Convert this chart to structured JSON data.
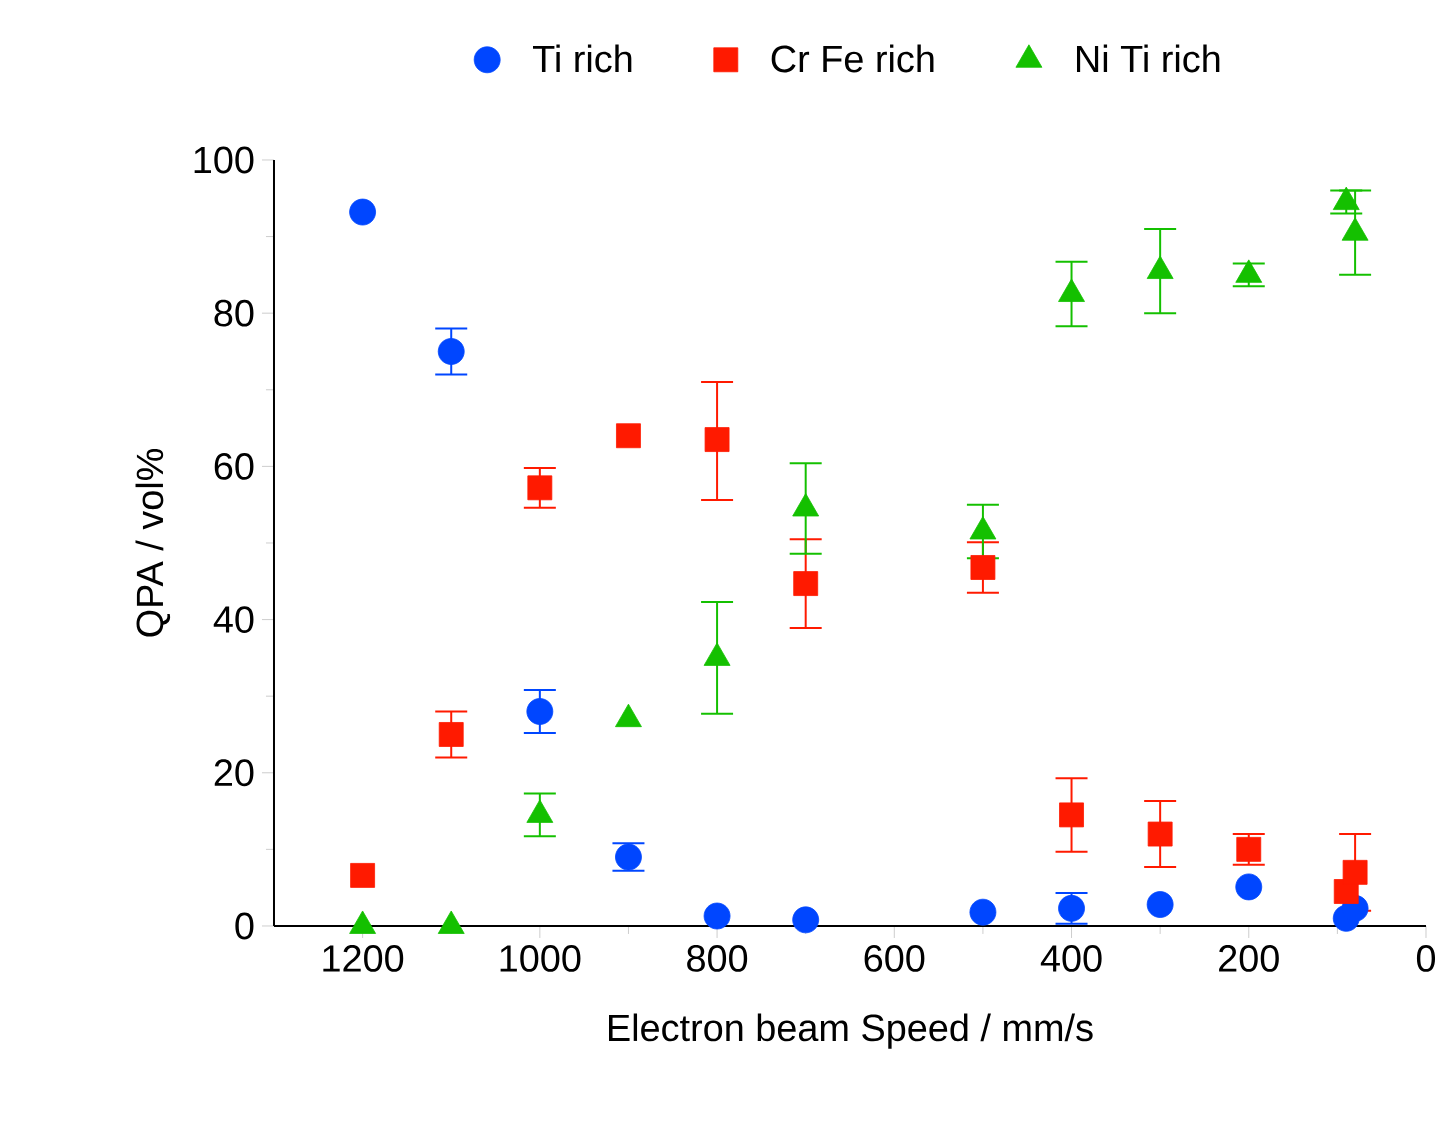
{
  "chart_data": {
    "type": "scatter",
    "xlabel": "Electron beam Speed  / mm/s",
    "ylabel": "QPA / vol%",
    "x": [
      1200,
      1100,
      1000,
      900,
      800,
      700,
      500,
      400,
      300,
      200,
      90,
      80
    ],
    "series": [
      {
        "name": "Ti rich",
        "color": "#0046ff",
        "marker": "circle",
        "values": [
          93.2,
          75,
          28,
          9,
          1.3,
          0.8,
          1.8,
          2.3,
          2.8,
          5.1,
          1,
          2.3
        ],
        "errors": [
          null,
          3,
          2.8,
          1.8,
          null,
          null,
          null,
          2,
          null,
          null,
          null,
          null
        ]
      },
      {
        "name": "Cr Fe rich",
        "color": "#ff1a00",
        "marker": "square",
        "values": [
          6.6,
          25,
          57.2,
          64,
          63.5,
          44.7,
          46.8,
          14.5,
          12,
          10,
          4.5,
          7
        ],
        "errors": [
          null,
          3,
          2.6,
          null,
          [
            55.6,
            71
          ],
          5.8,
          3.3,
          4.8,
          4.3,
          2,
          null,
          5
        ]
      },
      {
        "name": "Ni Ti rich",
        "color": "#14c000",
        "marker": "triangle",
        "values": [
          0,
          0,
          14.5,
          27,
          35,
          54.5,
          51.5,
          82.5,
          85.5,
          85,
          94.5,
          90.5
        ],
        "errors": [
          null,
          null,
          2.8,
          null,
          7.3,
          5.9,
          3.5,
          4.2,
          5.5,
          1.5,
          1.5,
          5.5
        ]
      }
    ],
    "xlim": [
      1300,
      0
    ],
    "xticks": [
      1200,
      1000,
      800,
      600,
      400,
      200,
      0
    ],
    "ylim": [
      0,
      100
    ],
    "yticks": [
      0,
      20,
      40,
      60,
      80,
      100
    ],
    "legend": "top",
    "grid": false
  }
}
